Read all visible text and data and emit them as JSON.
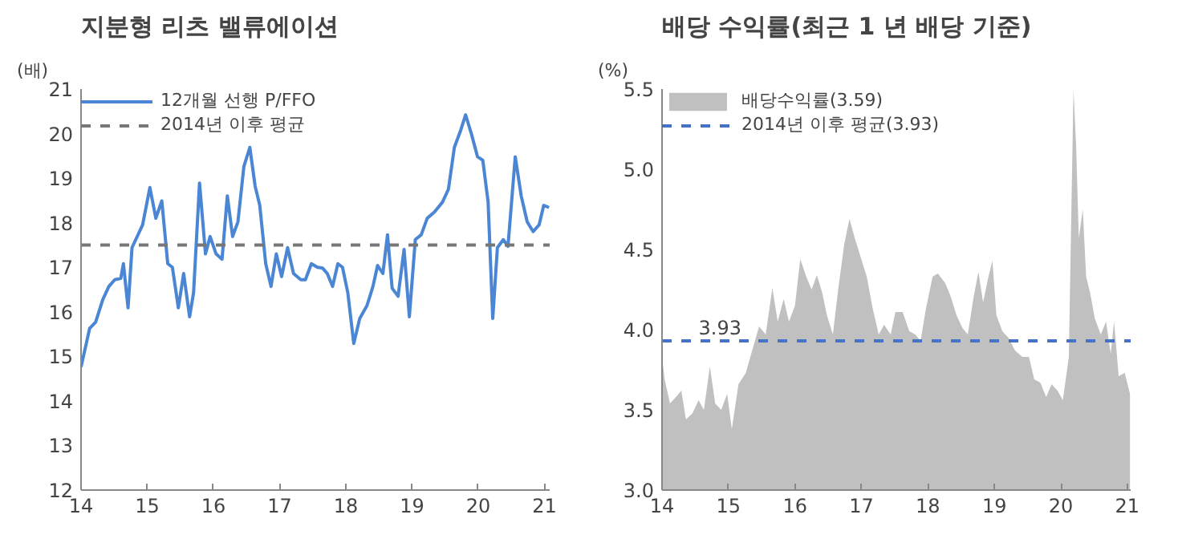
{
  "chart_data": [
    {
      "type": "line",
      "title": "지분형 리츠 밸류에이션",
      "ylabel": "(배)",
      "xlim": [
        14,
        21.08
      ],
      "ylim": [
        12,
        21
      ],
      "xticks": [
        14,
        15,
        16,
        17,
        18,
        19,
        20,
        21
      ],
      "yticks": [
        12,
        13,
        14,
        15,
        16,
        17,
        18,
        19,
        20,
        21
      ],
      "grid": false,
      "legend": "top left",
      "series": [
        {
          "name": "12개월 선행 P/FFO",
          "color": "#4a86d4",
          "line_style": "solid",
          "x": [
            14.0,
            14.13,
            14.22,
            14.33,
            14.42,
            14.51,
            14.6,
            14.64,
            14.71,
            14.77,
            14.93,
            15.04,
            15.13,
            15.22,
            15.31,
            15.38,
            15.47,
            15.55,
            15.64,
            15.7,
            15.79,
            15.88,
            15.95,
            16.04,
            16.13,
            16.21,
            16.29,
            16.37,
            16.46,
            16.55,
            16.63,
            16.7,
            16.79,
            16.87,
            16.95,
            17.03,
            17.12,
            17.21,
            17.32,
            17.39,
            17.48,
            17.57,
            17.65,
            17.72,
            17.8,
            17.88,
            17.95,
            18.03,
            18.12,
            18.21,
            18.32,
            18.41,
            18.48,
            18.56,
            18.63,
            18.7,
            18.79,
            18.88,
            18.96,
            19.05,
            19.14,
            19.23,
            19.34,
            19.46,
            19.55,
            19.64,
            19.73,
            19.81,
            19.9,
            19.99,
            20.07,
            20.15,
            20.22,
            20.29,
            20.38,
            20.45,
            20.56,
            20.65,
            20.74,
            20.83,
            20.92,
            20.99,
            21.07
          ],
          "values": [
            14.76,
            15.63,
            15.77,
            16.28,
            16.57,
            16.72,
            16.75,
            17.08,
            16.09,
            17.44,
            17.95,
            18.79,
            18.1,
            18.49,
            17.08,
            17.0,
            16.09,
            16.86,
            15.89,
            16.43,
            18.89,
            17.3,
            17.69,
            17.3,
            17.18,
            18.6,
            17.69,
            18.02,
            19.26,
            19.69,
            18.82,
            18.39,
            17.08,
            16.57,
            17.3,
            16.79,
            17.44,
            16.86,
            16.72,
            16.72,
            17.08,
            17.0,
            16.98,
            16.86,
            16.57,
            17.08,
            17.0,
            16.43,
            15.29,
            15.85,
            16.14,
            16.57,
            17.04,
            16.86,
            17.73,
            16.53,
            16.35,
            17.4,
            15.89,
            17.62,
            17.73,
            18.1,
            18.24,
            18.46,
            18.75,
            19.69,
            20.05,
            20.42,
            19.98,
            19.48,
            19.4,
            18.46,
            15.85,
            17.44,
            17.62,
            17.47,
            19.48,
            18.6,
            18.02,
            17.8,
            17.95,
            18.39,
            18.34
          ]
        }
      ],
      "ref_lines": [
        {
          "axis": "y",
          "value": 17.5,
          "label": "2014년 이후 평균",
          "color": "#777777",
          "line_style": "dashed"
        }
      ]
    },
    {
      "type": "area",
      "title": "배당 수익률(최근 1 년 배당 기준)",
      "ylabel": "(%)",
      "xlim": [
        14,
        21.05
      ],
      "ylim": [
        3.0,
        5.5
      ],
      "xticks": [
        14,
        15,
        16,
        17,
        18,
        19,
        20,
        21
      ],
      "yticks": [
        {
          "value": 3.0,
          "label": "3.0"
        },
        {
          "value": 3.5,
          "label": "3.5"
        },
        {
          "value": 4.0,
          "label": "4.0"
        },
        {
          "value": 4.5,
          "label": "4.5"
        },
        {
          "value": 5.0,
          "label": "5.0"
        },
        {
          "value": 5.5,
          "label": "5.5"
        }
      ],
      "grid": false,
      "legend": "top left",
      "series": [
        {
          "name": "배당수익률(3.59)",
          "color": "#c0c0c0",
          "x": [
            14.0,
            14.04,
            14.12,
            14.21,
            14.29,
            14.36,
            14.46,
            14.55,
            14.63,
            14.72,
            14.8,
            14.89,
            14.98,
            15.05,
            15.15,
            15.26,
            15.37,
            15.46,
            15.56,
            15.66,
            15.74,
            15.83,
            15.91,
            16.0,
            16.08,
            16.17,
            16.25,
            16.33,
            16.41,
            16.48,
            16.57,
            16.65,
            16.74,
            16.82,
            16.9,
            16.99,
            17.08,
            17.17,
            17.26,
            17.34,
            17.44,
            17.51,
            17.62,
            17.72,
            17.81,
            17.89,
            17.97,
            18.07,
            18.15,
            18.26,
            18.34,
            18.43,
            18.52,
            18.6,
            18.69,
            18.76,
            18.83,
            18.9,
            18.97,
            19.03,
            19.12,
            19.21,
            19.31,
            19.42,
            19.52,
            19.6,
            19.69,
            19.78,
            19.86,
            19.95,
            20.03,
            20.12,
            20.19,
            20.23,
            20.27,
            20.33,
            20.38,
            20.44,
            20.51,
            20.6,
            20.68,
            20.75,
            20.8,
            20.87,
            20.96,
            21.04
          ],
          "values": [
            3.83,
            3.69,
            3.54,
            3.58,
            3.62,
            3.44,
            3.48,
            3.56,
            3.5,
            3.77,
            3.54,
            3.5,
            3.6,
            3.38,
            3.66,
            3.73,
            3.89,
            4.02,
            3.97,
            4.26,
            4.05,
            4.19,
            4.05,
            4.15,
            4.44,
            4.33,
            4.25,
            4.34,
            4.23,
            4.09,
            3.97,
            4.25,
            4.53,
            4.69,
            4.57,
            4.45,
            4.33,
            4.13,
            3.97,
            4.03,
            3.97,
            4.11,
            4.11,
            3.99,
            3.97,
            3.93,
            4.13,
            4.33,
            4.35,
            4.29,
            4.21,
            4.09,
            4.01,
            3.97,
            4.21,
            4.36,
            4.17,
            4.31,
            4.43,
            4.09,
            3.99,
            3.95,
            3.87,
            3.83,
            3.83,
            3.69,
            3.67,
            3.58,
            3.66,
            3.62,
            3.56,
            3.83,
            5.5,
            5.14,
            4.57,
            4.75,
            4.33,
            4.23,
            4.07,
            3.97,
            4.05,
            3.85,
            4.05,
            3.71,
            3.73,
            3.6
          ]
        }
      ],
      "ref_lines": [
        {
          "axis": "y",
          "value": 3.93,
          "label": "2014년 이후 평균(3.93)",
          "color": "#4472c4",
          "line_style": "dashed"
        }
      ],
      "annotations": [
        {
          "text": "3.93",
          "x": 14.55,
          "y": 3.93
        }
      ]
    }
  ]
}
